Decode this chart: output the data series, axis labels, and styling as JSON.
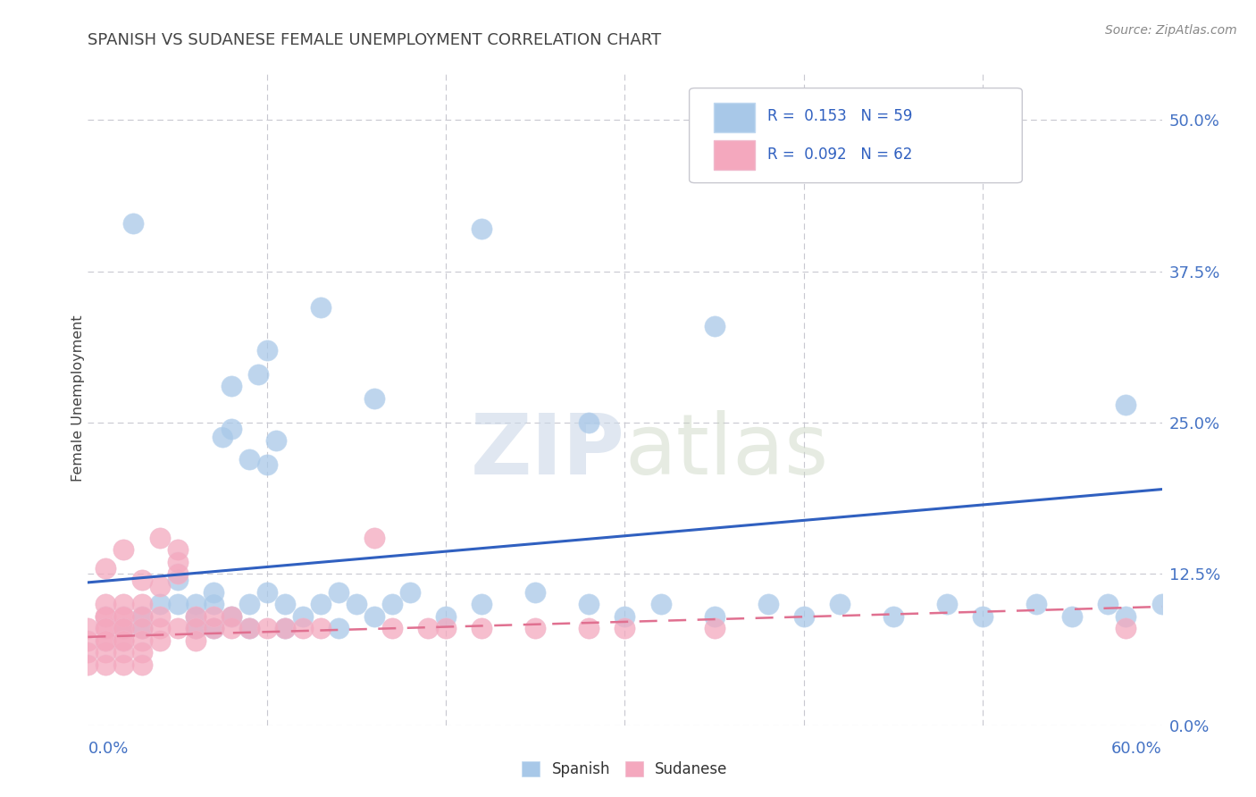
{
  "title": "SPANISH VS SUDANESE FEMALE UNEMPLOYMENT CORRELATION CHART",
  "source": "Source: ZipAtlas.com",
  "ylabel": "Female Unemployment",
  "ytick_values": [
    0.0,
    0.125,
    0.25,
    0.375,
    0.5
  ],
  "ytick_labels": [
    "0.0%",
    "12.5%",
    "25.0%",
    "37.5%",
    "50.0%"
  ],
  "xlim": [
    0.0,
    0.6
  ],
  "ylim": [
    0.0,
    0.54
  ],
  "spanish_R": 0.153,
  "spanish_N": 59,
  "sudanese_R": 0.092,
  "sudanese_N": 62,
  "spanish_color": "#a8c8e8",
  "sudanese_color": "#f4a8be",
  "spanish_line_color": "#3060c0",
  "sudanese_line_color": "#e07090",
  "background_color": "#ffffff",
  "spanish_x": [
    0.025,
    0.22,
    0.13,
    0.1,
    0.095,
    0.08,
    0.16,
    0.58,
    0.08,
    0.075,
    0.105,
    0.28,
    0.09,
    0.1,
    0.35,
    0.03,
    0.04,
    0.05,
    0.05,
    0.06,
    0.06,
    0.07,
    0.07,
    0.08,
    0.09,
    0.1,
    0.11,
    0.12,
    0.13,
    0.14,
    0.15,
    0.16,
    0.17,
    0.18,
    0.2,
    0.22,
    0.25,
    0.28,
    0.3,
    0.32,
    0.35,
    0.38,
    0.4,
    0.42,
    0.45,
    0.48,
    0.5,
    0.53,
    0.55,
    0.57,
    0.58,
    0.6,
    0.02,
    0.03,
    0.06,
    0.07,
    0.09,
    0.11,
    0.14
  ],
  "spanish_y": [
    0.415,
    0.41,
    0.345,
    0.31,
    0.29,
    0.28,
    0.27,
    0.265,
    0.245,
    0.238,
    0.235,
    0.25,
    0.22,
    0.215,
    0.33,
    0.09,
    0.1,
    0.12,
    0.1,
    0.1,
    0.09,
    0.11,
    0.1,
    0.09,
    0.1,
    0.11,
    0.1,
    0.09,
    0.1,
    0.11,
    0.1,
    0.09,
    0.1,
    0.11,
    0.09,
    0.1,
    0.11,
    0.1,
    0.09,
    0.1,
    0.09,
    0.1,
    0.09,
    0.1,
    0.09,
    0.1,
    0.09,
    0.1,
    0.09,
    0.1,
    0.09,
    0.1,
    0.08,
    0.08,
    0.08,
    0.08,
    0.08,
    0.08,
    0.08
  ],
  "sudanese_x": [
    0.0,
    0.0,
    0.0,
    0.0,
    0.01,
    0.01,
    0.01,
    0.01,
    0.01,
    0.01,
    0.01,
    0.01,
    0.01,
    0.02,
    0.02,
    0.02,
    0.02,
    0.02,
    0.02,
    0.02,
    0.02,
    0.02,
    0.03,
    0.03,
    0.03,
    0.03,
    0.03,
    0.03,
    0.04,
    0.04,
    0.04,
    0.04,
    0.05,
    0.05,
    0.05,
    0.05,
    0.06,
    0.06,
    0.06,
    0.07,
    0.07,
    0.08,
    0.08,
    0.09,
    0.1,
    0.11,
    0.12,
    0.13,
    0.16,
    0.17,
    0.19,
    0.2,
    0.22,
    0.25,
    0.28,
    0.3,
    0.35,
    0.58,
    0.01,
    0.02,
    0.03,
    0.04
  ],
  "sudanese_y": [
    0.08,
    0.07,
    0.06,
    0.05,
    0.1,
    0.09,
    0.08,
    0.07,
    0.06,
    0.05,
    0.09,
    0.08,
    0.07,
    0.1,
    0.09,
    0.08,
    0.07,
    0.06,
    0.05,
    0.09,
    0.08,
    0.07,
    0.1,
    0.09,
    0.08,
    0.07,
    0.06,
    0.05,
    0.09,
    0.08,
    0.07,
    0.155,
    0.145,
    0.135,
    0.125,
    0.08,
    0.09,
    0.08,
    0.07,
    0.08,
    0.09,
    0.08,
    0.09,
    0.08,
    0.08,
    0.08,
    0.08,
    0.08,
    0.155,
    0.08,
    0.08,
    0.08,
    0.08,
    0.08,
    0.08,
    0.08,
    0.08,
    0.08,
    0.13,
    0.145,
    0.12,
    0.115
  ],
  "sp_line_x": [
    0.0,
    0.6
  ],
  "sp_line_y": [
    0.118,
    0.195
  ],
  "su_line_x": [
    0.0,
    0.6
  ],
  "su_line_y": [
    0.073,
    0.098
  ]
}
